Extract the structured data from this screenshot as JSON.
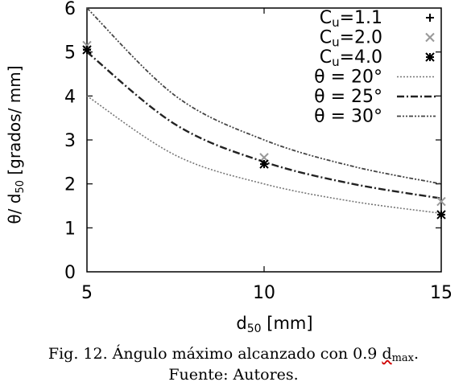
{
  "chart_data": {
    "type": "line",
    "xlabel": "d",
    "xlabel_sub": "50",
    "xlabel_unit": " [mm]",
    "ylabel": "θ/ d",
    "ylabel_sub": "50",
    "ylabel_unit": " [grados/ mm]",
    "xlim": [
      5,
      15
    ],
    "ylim": [
      0,
      6
    ],
    "xticks": [
      5,
      10,
      15
    ],
    "xtick_labels": [
      "5",
      "10",
      "15"
    ],
    "yticks": [
      0,
      1,
      2,
      3,
      4,
      5,
      6
    ],
    "ytick_labels": [
      "0",
      "1",
      "2",
      "3",
      "4",
      "5",
      "6"
    ],
    "grid": false,
    "legend_position": "top-right",
    "points": [
      {
        "name": "Cu=1.1",
        "label": "C",
        "label_sub": "u",
        "label_rest": "=1.1",
        "marker": "plus",
        "color": "#000000",
        "x": [
          5,
          10,
          15
        ],
        "y": [
          5.05,
          2.45,
          1.3
        ]
      },
      {
        "name": "Cu=2.0",
        "label": "C",
        "label_sub": "u",
        "label_rest": "=2.0",
        "marker": "cross",
        "color": "#999999",
        "x": [
          5,
          10,
          15
        ],
        "y": [
          5.15,
          2.6,
          1.6
        ]
      },
      {
        "name": "Cu=4.0",
        "label": "C",
        "label_sub": "u",
        "label_rest": "=4.0",
        "marker": "star",
        "color": "#000000",
        "x": [
          5,
          10,
          15
        ],
        "y": [
          5.05,
          2.45,
          1.3
        ]
      }
    ],
    "series": [
      {
        "name": "θ = 20°",
        "label": "θ = 20°",
        "dash": "2,2",
        "width": 1.6,
        "color": "#777777",
        "x": [
          5,
          7.5,
          10,
          12.5,
          15
        ],
        "y": [
          4.0,
          2.65,
          2.0,
          1.6,
          1.33
        ]
      },
      {
        "name": "θ = 25°",
        "label": "θ = 25°",
        "dash": "9,3,2,3",
        "width": 2.4,
        "color": "#222222",
        "x": [
          5,
          7.5,
          10,
          12.5,
          15
        ],
        "y": [
          5.0,
          3.35,
          2.5,
          2.0,
          1.67
        ]
      },
      {
        "name": "θ = 30°",
        "label": "θ = 30°",
        "dash": "5,2,2,2,2,2",
        "width": 1.8,
        "color": "#444444",
        "x": [
          5,
          7.5,
          10,
          12.5,
          15
        ],
        "y": [
          6.0,
          4.0,
          3.0,
          2.4,
          2.0
        ]
      }
    ]
  },
  "caption": {
    "line1_prefix": "Fig. 12. Ángulo máximo alcanzado con 0.9 ",
    "line1_d": "d",
    "line1_sub": "max",
    "line1_end": ".",
    "line2": "Fuente: Autores."
  }
}
